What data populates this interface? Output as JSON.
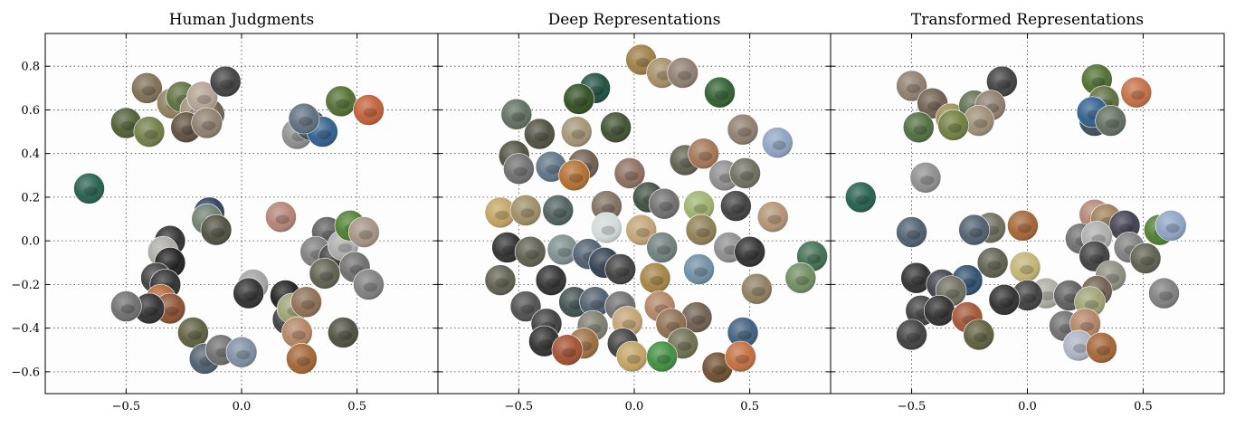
{
  "chart_data": [
    {
      "type": "scatter",
      "title": "Human Judgments",
      "xlim": [
        -0.85,
        0.85
      ],
      "ylim": [
        -0.7,
        0.95
      ],
      "xticks": [
        "−0.5",
        "0.0",
        "0.5"
      ],
      "yticks": [
        "0.8",
        "0.6",
        "0.4",
        "0.2",
        "0.0",
        "−0.2",
        "−0.4",
        "−0.6"
      ],
      "grid": true,
      "points": [
        {
          "x": -0.66,
          "y": 0.24,
          "c": "#1f5a4a"
        },
        {
          "x": -0.41,
          "y": 0.7,
          "c": "#7a6a50"
        },
        {
          "x": -0.5,
          "y": 0.54,
          "c": "#4a5a30"
        },
        {
          "x": -0.4,
          "y": 0.5,
          "c": "#6a7a40"
        },
        {
          "x": -0.3,
          "y": 0.63,
          "c": "#8a7a5a"
        },
        {
          "x": -0.26,
          "y": 0.66,
          "c": "#5a6a3a"
        },
        {
          "x": -0.2,
          "y": 0.6,
          "c": "#9a8a70"
        },
        {
          "x": -0.14,
          "y": 0.58,
          "c": "#6a5a4a"
        },
        {
          "x": -0.17,
          "y": 0.66,
          "c": "#b0a090"
        },
        {
          "x": -0.07,
          "y": 0.73,
          "c": "#3a3a3a"
        },
        {
          "x": -0.24,
          "y": 0.52,
          "c": "#5a4a3a"
        },
        {
          "x": -0.15,
          "y": 0.54,
          "c": "#8a7a6a"
        },
        {
          "x": 0.24,
          "y": 0.49,
          "c": "#8a8a8a"
        },
        {
          "x": 0.3,
          "y": 0.53,
          "c": "#3a4a5a"
        },
        {
          "x": 0.35,
          "y": 0.5,
          "c": "#2a5a8a"
        },
        {
          "x": 0.43,
          "y": 0.64,
          "c": "#4a6a2a"
        },
        {
          "x": 0.55,
          "y": 0.6,
          "c": "#c05a30"
        },
        {
          "x": 0.27,
          "y": 0.56,
          "c": "#5a6a7a"
        },
        {
          "x": -0.14,
          "y": 0.13,
          "c": "#2a3a5a"
        },
        {
          "x": -0.15,
          "y": 0.1,
          "c": "#6a7a6a"
        },
        {
          "x": -0.11,
          "y": 0.05,
          "c": "#4a4a3a"
        },
        {
          "x": -0.31,
          "y": 0.0,
          "c": "#2a2a2a"
        },
        {
          "x": -0.34,
          "y": -0.05,
          "c": "#aaa8a0"
        },
        {
          "x": -0.31,
          "y": -0.1,
          "c": "#1a1a1a"
        },
        {
          "x": -0.37,
          "y": -0.17,
          "c": "#3a3a3a"
        },
        {
          "x": -0.33,
          "y": -0.2,
          "c": "#2a2a2a"
        },
        {
          "x": -0.35,
          "y": -0.27,
          "c": "#b06030"
        },
        {
          "x": -0.31,
          "y": -0.31,
          "c": "#8a4a2a"
        },
        {
          "x": -0.4,
          "y": -0.31,
          "c": "#2a2a2a"
        },
        {
          "x": -0.5,
          "y": -0.3,
          "c": "#6a6a6a"
        },
        {
          "x": -0.21,
          "y": -0.42,
          "c": "#5a5a3a"
        },
        {
          "x": -0.16,
          "y": -0.54,
          "c": "#4a5a6a"
        },
        {
          "x": -0.09,
          "y": -0.5,
          "c": "#6a6a6a"
        },
        {
          "x": 0.0,
          "y": -0.51,
          "c": "#7a8aa0"
        },
        {
          "x": 0.05,
          "y": -0.2,
          "c": "#a0a0a0"
        },
        {
          "x": 0.03,
          "y": -0.24,
          "c": "#2a2a2a"
        },
        {
          "x": 0.19,
          "y": -0.25,
          "c": "#1a1a1a"
        },
        {
          "x": 0.2,
          "y": -0.36,
          "c": "#3a3a3a"
        },
        {
          "x": 0.22,
          "y": -0.31,
          "c": "#9aa070"
        },
        {
          "x": 0.24,
          "y": -0.42,
          "c": "#b08060"
        },
        {
          "x": 0.28,
          "y": -0.28,
          "c": "#8a6a50"
        },
        {
          "x": 0.26,
          "y": -0.54,
          "c": "#a06030"
        },
        {
          "x": 0.17,
          "y": 0.11,
          "c": "#b08070"
        },
        {
          "x": 0.37,
          "y": 0.04,
          "c": "#5a5a5a"
        },
        {
          "x": 0.32,
          "y": -0.05,
          "c": "#7a7a7a"
        },
        {
          "x": 0.4,
          "y": -0.08,
          "c": "#3a3a3a"
        },
        {
          "x": 0.44,
          "y": -0.02,
          "c": "#aaaaaa"
        },
        {
          "x": 0.47,
          "y": 0.07,
          "c": "#4a7a2a"
        },
        {
          "x": 0.53,
          "y": 0.04,
          "c": "#a09080"
        },
        {
          "x": 0.36,
          "y": -0.15,
          "c": "#5a5a4a"
        },
        {
          "x": 0.49,
          "y": -0.12,
          "c": "#6a6a6a"
        },
        {
          "x": 0.55,
          "y": -0.2,
          "c": "#7a7a7a"
        },
        {
          "x": 0.44,
          "y": -0.42,
          "c": "#4a4a3a"
        }
      ]
    },
    {
      "type": "scatter",
      "title": "Deep Representations",
      "xlim": [
        -0.85,
        0.85
      ],
      "ylim": [
        -0.7,
        0.95
      ],
      "xticks": [
        "−0.5",
        "0.0",
        "0.5"
      ],
      "yticks": [],
      "grid": true,
      "points": [
        {
          "x": 0.03,
          "y": 0.83,
          "c": "#9a7a40"
        },
        {
          "x": 0.12,
          "y": 0.77,
          "c": "#a08a60"
        },
        {
          "x": 0.21,
          "y": 0.77,
          "c": "#8a7a6a"
        },
        {
          "x": -0.17,
          "y": 0.7,
          "c": "#1a4a3a"
        },
        {
          "x": -0.24,
          "y": 0.65,
          "c": "#2a4a1a"
        },
        {
          "x": 0.37,
          "y": 0.68,
          "c": "#2a5a2a"
        },
        {
          "x": -0.51,
          "y": 0.58,
          "c": "#5a6a5a"
        },
        {
          "x": -0.41,
          "y": 0.49,
          "c": "#4a4a3a"
        },
        {
          "x": -0.25,
          "y": 0.5,
          "c": "#a09070"
        },
        {
          "x": -0.08,
          "y": 0.52,
          "c": "#3a4a2a"
        },
        {
          "x": 0.47,
          "y": 0.51,
          "c": "#8a7a6a"
        },
        {
          "x": 0.62,
          "y": 0.45,
          "c": "#8aa0c0"
        },
        {
          "x": -0.52,
          "y": 0.39,
          "c": "#4a4a3a"
        },
        {
          "x": -0.5,
          "y": 0.33,
          "c": "#6a6a6a"
        },
        {
          "x": -0.36,
          "y": 0.34,
          "c": "#5a7080"
        },
        {
          "x": -0.22,
          "y": 0.35,
          "c": "#6a5a4a"
        },
        {
          "x": -0.02,
          "y": 0.31,
          "c": "#8a6a5a"
        },
        {
          "x": 0.22,
          "y": 0.37,
          "c": "#5a5a4a"
        },
        {
          "x": 0.3,
          "y": 0.4,
          "c": "#a07050"
        },
        {
          "x": 0.39,
          "y": 0.3,
          "c": "#8a8a8a"
        },
        {
          "x": 0.48,
          "y": 0.31,
          "c": "#6a6a5a"
        },
        {
          "x": -0.26,
          "y": 0.3,
          "c": "#b06a2a"
        },
        {
          "x": -0.58,
          "y": 0.13,
          "c": "#c0a060"
        },
        {
          "x": -0.47,
          "y": 0.14,
          "c": "#9a8a60"
        },
        {
          "x": -0.33,
          "y": 0.14,
          "c": "#4a5a5a"
        },
        {
          "x": -0.12,
          "y": 0.16,
          "c": "#7a6a5a"
        },
        {
          "x": 0.06,
          "y": 0.2,
          "c": "#3a4a3a"
        },
        {
          "x": 0.13,
          "y": 0.17,
          "c": "#6a6a6a"
        },
        {
          "x": 0.28,
          "y": 0.16,
          "c": "#9ab06a"
        },
        {
          "x": 0.44,
          "y": 0.16,
          "c": "#3a3a3a"
        },
        {
          "x": 0.6,
          "y": 0.11,
          "c": "#b09070"
        },
        {
          "x": -0.12,
          "y": 0.06,
          "c": "#d0d8d8"
        },
        {
          "x": 0.03,
          "y": 0.05,
          "c": "#c0a070"
        },
        {
          "x": 0.29,
          "y": 0.05,
          "c": "#8a7a50"
        },
        {
          "x": -0.55,
          "y": -0.03,
          "c": "#2a2a2a"
        },
        {
          "x": -0.45,
          "y": -0.05,
          "c": "#5a5a4a"
        },
        {
          "x": -0.31,
          "y": -0.04,
          "c": "#7a8a8a"
        },
        {
          "x": -0.2,
          "y": -0.06,
          "c": "#4a5a6a"
        },
        {
          "x": 0.12,
          "y": -0.03,
          "c": "#6a7a7a"
        },
        {
          "x": 0.41,
          "y": -0.03,
          "c": "#8a8a8a"
        },
        {
          "x": 0.5,
          "y": -0.05,
          "c": "#2a2a2a"
        },
        {
          "x": 0.77,
          "y": -0.07,
          "c": "#3a6a4a"
        },
        {
          "x": -0.13,
          "y": -0.1,
          "c": "#2a3a4a"
        },
        {
          "x": -0.06,
          "y": -0.13,
          "c": "#3a3a3a"
        },
        {
          "x": 0.28,
          "y": -0.13,
          "c": "#6a8aa0"
        },
        {
          "x": 0.72,
          "y": -0.17,
          "c": "#6a8a5a"
        },
        {
          "x": -0.58,
          "y": -0.18,
          "c": "#5a5a4a"
        },
        {
          "x": -0.36,
          "y": -0.18,
          "c": "#2a2a2a"
        },
        {
          "x": 0.09,
          "y": -0.17,
          "c": "#a08040"
        },
        {
          "x": 0.53,
          "y": -0.22,
          "c": "#8a7a5a"
        },
        {
          "x": -0.47,
          "y": -0.3,
          "c": "#4a4a4a"
        },
        {
          "x": -0.26,
          "y": -0.28,
          "c": "#3a4a4a"
        },
        {
          "x": -0.17,
          "y": -0.28,
          "c": "#4a5a6a"
        },
        {
          "x": -0.06,
          "y": -0.3,
          "c": "#6a6a6a"
        },
        {
          "x": 0.11,
          "y": -0.3,
          "c": "#b08060"
        },
        {
          "x": 0.27,
          "y": -0.35,
          "c": "#6a5a4a"
        },
        {
          "x": -0.38,
          "y": -0.38,
          "c": "#3a3a3a"
        },
        {
          "x": -0.18,
          "y": -0.39,
          "c": "#7a7a6a"
        },
        {
          "x": -0.03,
          "y": -0.37,
          "c": "#c0a070"
        },
        {
          "x": 0.16,
          "y": -0.38,
          "c": "#8a6a4a"
        },
        {
          "x": 0.47,
          "y": -0.42,
          "c": "#3a5a7a"
        },
        {
          "x": -0.39,
          "y": -0.46,
          "c": "#2a2a2a"
        },
        {
          "x": -0.22,
          "y": -0.47,
          "c": "#9a6a3a"
        },
        {
          "x": -0.05,
          "y": -0.47,
          "c": "#3a3a3a"
        },
        {
          "x": 0.21,
          "y": -0.47,
          "c": "#6a6a4a"
        },
        {
          "x": -0.29,
          "y": -0.5,
          "c": "#a04a2a"
        },
        {
          "x": -0.01,
          "y": -0.53,
          "c": "#c0a060"
        },
        {
          "x": 0.12,
          "y": -0.53,
          "c": "#3a8a3a"
        },
        {
          "x": 0.36,
          "y": -0.58,
          "c": "#6a4a2a"
        },
        {
          "x": 0.46,
          "y": -0.53,
          "c": "#c06a3a"
        }
      ]
    },
    {
      "type": "scatter",
      "title": "Transformed Representations",
      "xlim": [
        -0.85,
        0.85
      ],
      "ylim": [
        -0.7,
        0.95
      ],
      "xticks": [
        "−0.5",
        "0.0",
        "0.5"
      ],
      "yticks": [],
      "grid": true,
      "points": [
        {
          "x": -0.11,
          "y": 0.73,
          "c": "#3a3a3a"
        },
        {
          "x": -0.5,
          "y": 0.71,
          "c": "#8a7a6a"
        },
        {
          "x": -0.41,
          "y": 0.63,
          "c": "#6a5a4a"
        },
        {
          "x": -0.33,
          "y": 0.56,
          "c": "#9a8a50"
        },
        {
          "x": -0.47,
          "y": 0.52,
          "c": "#4a6a3a"
        },
        {
          "x": -0.23,
          "y": 0.62,
          "c": "#5a6a4a"
        },
        {
          "x": -0.16,
          "y": 0.62,
          "c": "#8a7a6a"
        },
        {
          "x": -0.21,
          "y": 0.55,
          "c": "#9a8a70"
        },
        {
          "x": -0.32,
          "y": 0.53,
          "c": "#6a7a3a"
        },
        {
          "x": 0.3,
          "y": 0.74,
          "c": "#4a6a2a"
        },
        {
          "x": 0.47,
          "y": 0.68,
          "c": "#c06a40"
        },
        {
          "x": 0.33,
          "y": 0.64,
          "c": "#5a6a3a"
        },
        {
          "x": 0.29,
          "y": 0.55,
          "c": "#3a4a5a"
        },
        {
          "x": 0.28,
          "y": 0.59,
          "c": "#2a5a8a"
        },
        {
          "x": 0.36,
          "y": 0.55,
          "c": "#5a6a5a"
        },
        {
          "x": -0.72,
          "y": 0.2,
          "c": "#1f5a4a"
        },
        {
          "x": -0.44,
          "y": 0.29,
          "c": "#8a8a8a"
        },
        {
          "x": -0.5,
          "y": 0.04,
          "c": "#4a5a6a"
        },
        {
          "x": -0.16,
          "y": 0.06,
          "c": "#6a6a5a"
        },
        {
          "x": -0.23,
          "y": 0.05,
          "c": "#4a5a6a"
        },
        {
          "x": -0.02,
          "y": 0.07,
          "c": "#a06030"
        },
        {
          "x": 0.29,
          "y": 0.12,
          "c": "#b08070"
        },
        {
          "x": 0.34,
          "y": 0.1,
          "c": "#9a7a50"
        },
        {
          "x": 0.42,
          "y": 0.07,
          "c": "#3a3a4a"
        },
        {
          "x": 0.57,
          "y": 0.05,
          "c": "#4a7a2a"
        },
        {
          "x": 0.62,
          "y": 0.07,
          "c": "#8aa0c0"
        },
        {
          "x": 0.23,
          "y": 0.01,
          "c": "#6a6a6a"
        },
        {
          "x": 0.3,
          "y": 0.02,
          "c": "#aaaaaa"
        },
        {
          "x": 0.44,
          "y": -0.03,
          "c": "#7a7a7a"
        },
        {
          "x": 0.29,
          "y": -0.07,
          "c": "#3a3a3a"
        },
        {
          "x": 0.51,
          "y": -0.08,
          "c": "#5a5a4a"
        },
        {
          "x": -0.15,
          "y": -0.1,
          "c": "#5a5a4a"
        },
        {
          "x": -0.01,
          "y": -0.12,
          "c": "#c0b070"
        },
        {
          "x": -0.48,
          "y": -0.17,
          "c": "#2a2a2a"
        },
        {
          "x": -0.37,
          "y": -0.2,
          "c": "#3a3a4a"
        },
        {
          "x": -0.26,
          "y": -0.18,
          "c": "#2a4a6a"
        },
        {
          "x": -0.33,
          "y": -0.23,
          "c": "#6a6a5a"
        },
        {
          "x": 0.36,
          "y": -0.16,
          "c": "#8a8a7a"
        },
        {
          "x": 0.3,
          "y": -0.23,
          "c": "#6a5a4a"
        },
        {
          "x": 0.08,
          "y": -0.24,
          "c": "#aaa8a0"
        },
        {
          "x": 0.0,
          "y": -0.25,
          "c": "#3a3a3a"
        },
        {
          "x": -0.1,
          "y": -0.27,
          "c": "#2a2a2a"
        },
        {
          "x": 0.18,
          "y": -0.25,
          "c": "#5a5a5a"
        },
        {
          "x": 0.27,
          "y": -0.28,
          "c": "#9aa070"
        },
        {
          "x": 0.59,
          "y": -0.24,
          "c": "#7a7a7a"
        },
        {
          "x": -0.46,
          "y": -0.32,
          "c": "#3a3a3a"
        },
        {
          "x": -0.38,
          "y": -0.32,
          "c": "#2a2a2a"
        },
        {
          "x": -0.26,
          "y": -0.35,
          "c": "#a05030"
        },
        {
          "x": -0.5,
          "y": -0.43,
          "c": "#3a3a3a"
        },
        {
          "x": -0.21,
          "y": -0.43,
          "c": "#5a5a3a"
        },
        {
          "x": 0.16,
          "y": -0.39,
          "c": "#6a6a6a"
        },
        {
          "x": 0.25,
          "y": -0.38,
          "c": "#b08060"
        },
        {
          "x": 0.22,
          "y": -0.48,
          "c": "#aab0c0"
        },
        {
          "x": 0.32,
          "y": -0.49,
          "c": "#a06030"
        }
      ]
    }
  ]
}
